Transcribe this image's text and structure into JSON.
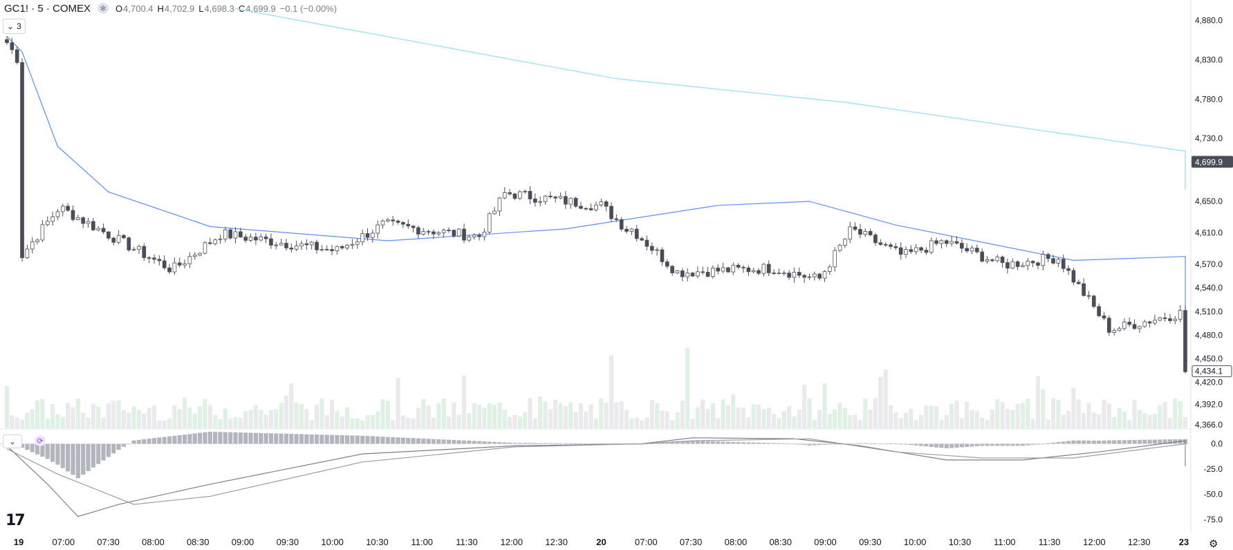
{
  "header": {
    "symbol": "GC1! · 5 · COMEX",
    "gear_icon": "gear-icon",
    "ohlc": [
      {
        "label": "O",
        "value": "4,700.4"
      },
      {
        "label": "H",
        "value": "4,702.9"
      },
      {
        "label": "L",
        "value": "4,698.3"
      },
      {
        "label": "C",
        "value": "4,699.9"
      }
    ],
    "change": "−0.1 (−0.00%)"
  },
  "indicators_toggle": {
    "label": "3",
    "icon": "chevron-down-icon"
  },
  "macd_toggle": {
    "icon": "chevron-down-icon"
  },
  "macd_reload_icon": "refresh-icon",
  "logo": "17",
  "colors": {
    "up_body": "#ffffff",
    "down_body": "#4a4d57",
    "wick": "#4a4d57",
    "ma_fast": "#5b8ff9",
    "ma_fast_alt": "#f26d6d",
    "ma_slow": "#a7e3f0",
    "vol_up": "#dff1e4",
    "vol_down": "#eaeaed",
    "macd_line": "#7b7e87",
    "signal_line": "#9a9da6",
    "hist": "#b2b5be",
    "axis_text": "#131722",
    "price_label_bg": "#4a4d57"
  },
  "chart_data": [
    {
      "type": "candlestick",
      "title": "GC1! · 5 · COMEX",
      "ylim": [
        4366,
        4885
      ],
      "y_ticks": [
        "4,880.0",
        "4,830.0",
        "4,780.0",
        "4,730.0",
        "4,650.0",
        "4,610.0",
        "4,570.0",
        "4,540.0",
        "4,510.0",
        "4,480.0",
        "4,450.0",
        "4,420.0",
        "4,392.0",
        "4,366.0"
      ],
      "x_ticks": [
        "19",
        "07:00",
        "07:30",
        "08:00",
        "08:30",
        "09:00",
        "09:30",
        "10:00",
        "10:30",
        "11:00",
        "11:30",
        "12:00",
        "12:30",
        "20",
        "07:00",
        "07:30",
        "08:00",
        "08:30",
        "09:00",
        "09:30",
        "10:00",
        "10:30",
        "11:00",
        "11:30",
        "12:00",
        "12:30",
        "23"
      ],
      "last_price_label": "4,699.9",
      "last_price": 4699.9,
      "day3_price_label": "4,434.1",
      "day3_price": 4434.1,
      "segments": [
        {
          "start": 4852,
          "end": 4832,
          "n": 3
        },
        {
          "start": 4582,
          "end": 4640,
          "n": 8
        },
        {
          "start": 4640,
          "end": 4565,
          "n": 22
        },
        {
          "start": 4565,
          "end": 4608,
          "n": 10
        },
        {
          "start": 4608,
          "end": 4588,
          "n": 22
        },
        {
          "start": 4588,
          "end": 4620,
          "n": 10
        },
        {
          "start": 4620,
          "end": 4606,
          "n": 18
        },
        {
          "start": 4606,
          "end": 4660,
          "n": 6
        },
        {
          "start": 4660,
          "end": 4645,
          "n": 18
        },
        {
          "start": 4645,
          "end": 4615,
          "n": 6
        },
        {
          "start": 4615,
          "end": 4560,
          "n": 10
        },
        {
          "start": 4560,
          "end": 4565,
          "n": 18
        },
        {
          "start": 4565,
          "end": 4552,
          "n": 9
        },
        {
          "start": 4552,
          "end": 4612,
          "n": 7
        },
        {
          "start": 4612,
          "end": 4582,
          "n": 10
        },
        {
          "start": 4582,
          "end": 4598,
          "n": 8
        },
        {
          "start": 4598,
          "end": 4570,
          "n": 12
        },
        {
          "start": 4570,
          "end": 4578,
          "n": 10
        },
        {
          "start": 4578,
          "end": 4488,
          "n": 11
        },
        {
          "start": 4488,
          "end": 4508,
          "n": 14
        },
        {
          "start": 4434,
          "end": 4434,
          "n": 1
        }
      ],
      "ma_fast": [
        {
          "at": 0,
          "value": 4860
        },
        {
          "at": 3,
          "value": 4840
        },
        {
          "at": 10,
          "value": 4720
        },
        {
          "at": 20,
          "value": 4662
        },
        {
          "at": 40,
          "value": 4618
        },
        {
          "at": 75,
          "value": 4600
        },
        {
          "at": 110,
          "value": 4615
        },
        {
          "at": 140,
          "value": 4645
        },
        {
          "at": 158,
          "value": 4650
        },
        {
          "at": 175,
          "value": 4620
        },
        {
          "at": 210,
          "value": 4575
        },
        {
          "at": 240,
          "value": 4580
        },
        {
          "at": 260,
          "value": 4580
        },
        {
          "at": 280,
          "value": 4572
        },
        {
          "at": 300,
          "value": 4530
        },
        {
          "at": 313,
          "value": 4502
        }
      ],
      "ma_slow": [
        {
          "at": 45,
          "value": 4895
        },
        {
          "at": 120,
          "value": 4806
        },
        {
          "at": 165,
          "value": 4776
        },
        {
          "at": 250,
          "value": 4714
        },
        {
          "at": 313,
          "value": 4665
        }
      ]
    },
    {
      "type": "bar",
      "name": "Volume",
      "values_note": "volume bars per candle, relative scale",
      "peaks": [
        1.0,
        0.9,
        0.45,
        0.55,
        0.6,
        0.35,
        0.5,
        0.85,
        0.5,
        0.55,
        0.6
      ]
    },
    {
      "type": "line",
      "name": "MACD",
      "ylim": [
        -88,
        12
      ],
      "y_ticks": [
        "0.0",
        "-25.0",
        "-50.0",
        "-75.0"
      ],
      "macd": [
        {
          "at": 0,
          "value": -2
        },
        {
          "at": 8,
          "value": -40
        },
        {
          "at": 14,
          "value": -72
        },
        {
          "at": 22,
          "value": -60
        },
        {
          "at": 40,
          "value": -40
        },
        {
          "at": 70,
          "value": -10
        },
        {
          "at": 100,
          "value": -2
        },
        {
          "at": 125,
          "value": 0
        },
        {
          "at": 135,
          "value": 6
        },
        {
          "at": 155,
          "value": 5
        },
        {
          "at": 168,
          "value": -2
        },
        {
          "at": 185,
          "value": -16
        },
        {
          "at": 200,
          "value": -16
        },
        {
          "at": 215,
          "value": -8
        },
        {
          "at": 232,
          "value": 3
        },
        {
          "at": 250,
          "value": 0
        },
        {
          "at": 278,
          "value": -14
        },
        {
          "at": 300,
          "value": -8
        },
        {
          "at": 313,
          "value": -22
        }
      ],
      "signal": [
        {
          "at": 0,
          "value": -5
        },
        {
          "at": 10,
          "value": -30
        },
        {
          "at": 25,
          "value": -60
        },
        {
          "at": 40,
          "value": -52
        },
        {
          "at": 70,
          "value": -18
        },
        {
          "at": 100,
          "value": -3
        },
        {
          "at": 125,
          "value": 0
        },
        {
          "at": 135,
          "value": 3
        },
        {
          "at": 158,
          "value": 5
        },
        {
          "at": 175,
          "value": -8
        },
        {
          "at": 192,
          "value": -14
        },
        {
          "at": 210,
          "value": -14
        },
        {
          "at": 235,
          "value": 0
        },
        {
          "at": 255,
          "value": -2
        },
        {
          "at": 282,
          "value": -12
        },
        {
          "at": 300,
          "value": -11
        },
        {
          "at": 313,
          "value": -16
        }
      ]
    }
  ]
}
